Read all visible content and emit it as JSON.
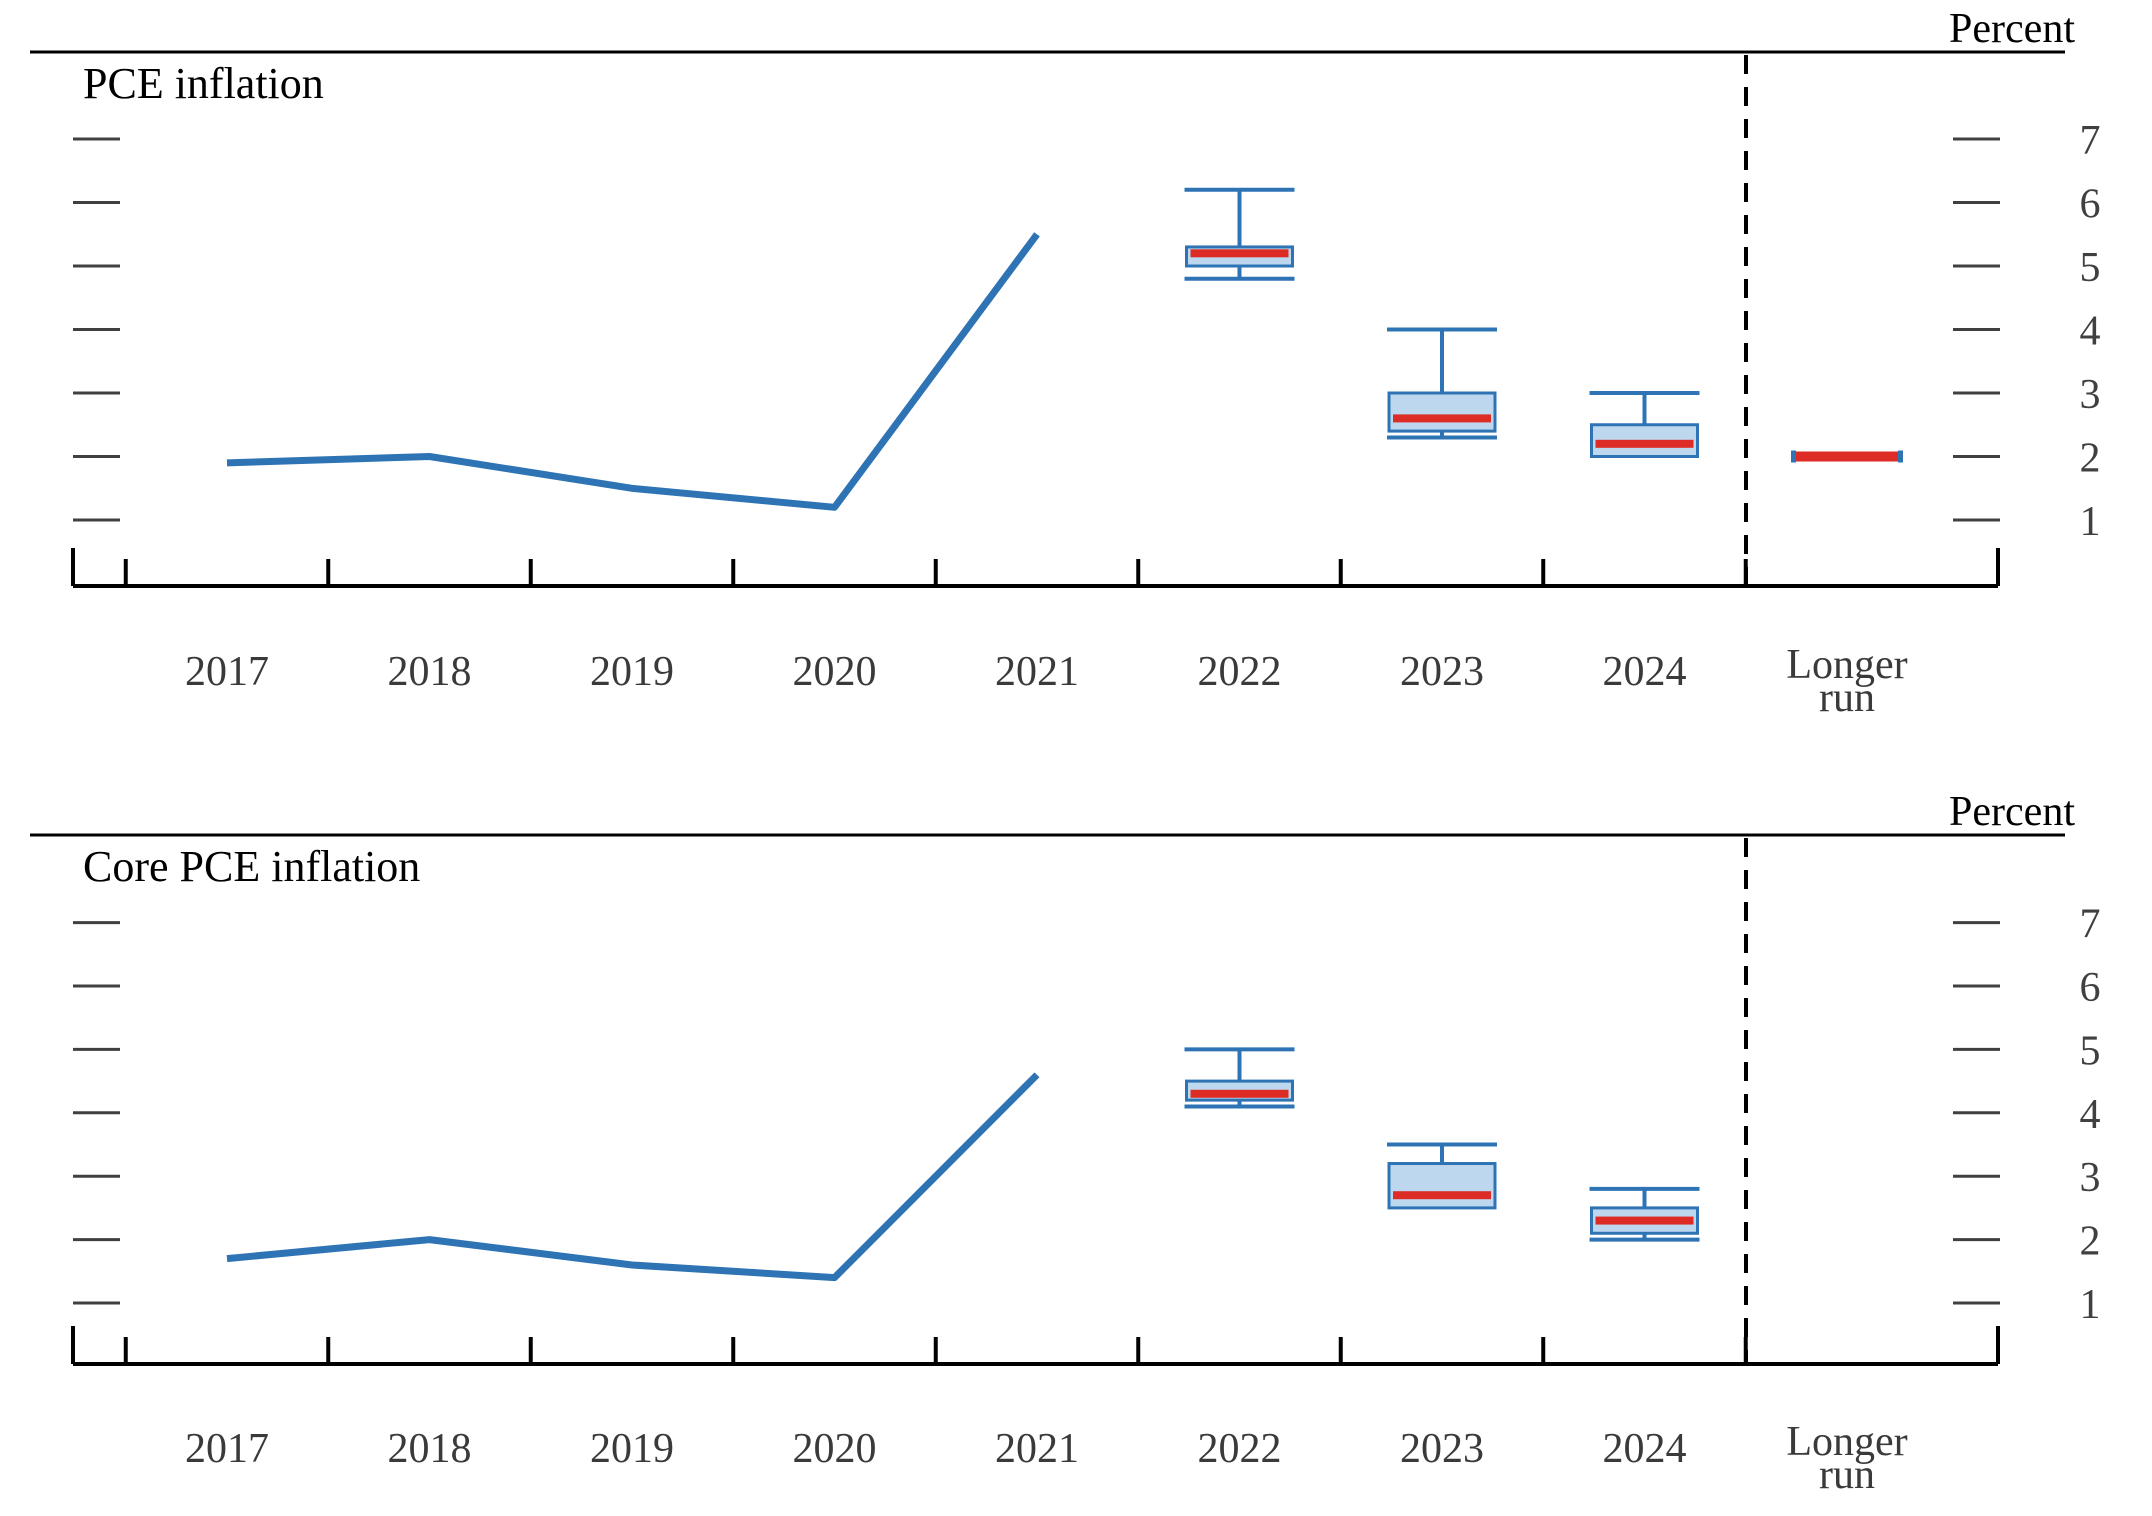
{
  "figure": {
    "unit_label": "Percent"
  },
  "colors": {
    "history_line": "#2E74B5",
    "box_border": "#2E74B5",
    "box_fill": "#BDD7EE",
    "median_red": "#DD2C25",
    "axis": "#000000",
    "tick": "#404040",
    "year_label": "#3A3A3A"
  },
  "chart_data": [
    {
      "type": "line+box",
      "title": "PCE inflation",
      "unit_label": "Percent",
      "legend": "none",
      "grid": false,
      "categories": [
        "2017",
        "2018",
        "2019",
        "2020",
        "2021",
        "2022",
        "2023",
        "2024",
        "Longer run"
      ],
      "yticks": [
        "7",
        "6",
        "5",
        "4",
        "3",
        "2",
        "1"
      ],
      "ylim": [
        0,
        8.4
      ],
      "history": {
        "categories": [
          "2017",
          "2018",
          "2019",
          "2020",
          "2021"
        ],
        "values": [
          1.9,
          2.0,
          1.5,
          1.2,
          5.5
        ]
      },
      "boxes": [
        {
          "category": "2022",
          "whisker_high": 6.2,
          "box_high": 5.3,
          "median": 5.2,
          "box_low": 5.0,
          "whisker_low": 4.8
        },
        {
          "category": "2023",
          "whisker_high": 4.0,
          "box_high": 3.0,
          "median": 2.6,
          "box_low": 2.4,
          "whisker_low": 2.3
        },
        {
          "category": "2024",
          "whisker_high": 3.0,
          "box_high": 2.5,
          "median": 2.2,
          "box_low": 2.0,
          "whisker_low": 2.0
        }
      ],
      "longer_run": {
        "category": "Longer run",
        "median": 2.0
      }
    },
    {
      "type": "line+box",
      "title": "Core PCE inflation",
      "unit_label": "Percent",
      "legend": "none",
      "grid": false,
      "categories": [
        "2017",
        "2018",
        "2019",
        "2020",
        "2021",
        "2022",
        "2023",
        "2024",
        "Longer run"
      ],
      "yticks": [
        "7",
        "6",
        "5",
        "4",
        "3",
        "2",
        "1"
      ],
      "ylim": [
        0,
        8.4
      ],
      "history": {
        "categories": [
          "2017",
          "2018",
          "2019",
          "2020",
          "2021"
        ],
        "values": [
          1.7,
          2.0,
          1.6,
          1.4,
          4.6
        ]
      },
      "boxes": [
        {
          "category": "2022",
          "whisker_high": 5.0,
          "box_high": 4.5,
          "median": 4.3,
          "box_low": 4.2,
          "whisker_low": 4.1
        },
        {
          "category": "2023",
          "whisker_high": 3.5,
          "box_high": 3.2,
          "median": 2.7,
          "box_low": 2.5,
          "whisker_low": 2.5
        },
        {
          "category": "2024",
          "whisker_high": 2.8,
          "box_high": 2.5,
          "median": 2.3,
          "box_low": 2.1,
          "whisker_low": 2.0
        }
      ],
      "longer_run": null
    }
  ]
}
